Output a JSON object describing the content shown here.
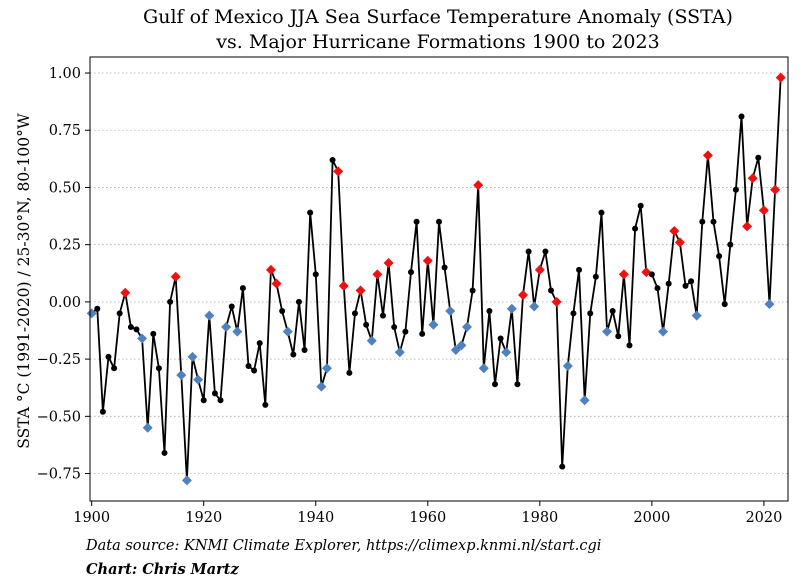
{
  "chart_data": {
    "type": "scatter",
    "title_line1": "Gulf of Mexico JJA Sea Surface Temperature Anomaly (SSTA)",
    "title_line2": "vs. Major Hurricane Formations 1900 to 2023",
    "ylabel": "SSTA °C (1991-2020) / 25-30°N, 80-100°W",
    "xlabel": "",
    "xlim": [
      1899.7,
      2024.3
    ],
    "ylim": [
      -0.87,
      1.07
    ],
    "x_ticks": [
      1900,
      1920,
      1940,
      1960,
      1980,
      2000,
      2020
    ],
    "y_ticks": [
      -0.75,
      -0.5,
      -0.25,
      0.0,
      0.25,
      0.5,
      0.75,
      1.0
    ],
    "y_tick_labels": [
      "−0.75",
      "−0.50",
      "−0.25",
      "0.00",
      "0.25",
      "0.50",
      "0.75",
      "1.00"
    ],
    "grid": "horizontal dotted",
    "colors": {
      "line": "#000000",
      "point_none": "#000000",
      "point_blue": "#4f81bd",
      "point_red": "#ee1111"
    },
    "series": [
      {
        "x": [
          1900,
          1901,
          1902,
          1903,
          1904,
          1905,
          1906,
          1907,
          1908,
          1909,
          1910,
          1911,
          1912,
          1913,
          1914,
          1915,
          1916,
          1917,
          1918,
          1919,
          1920,
          1921,
          1922,
          1923,
          1924,
          1925,
          1926,
          1927,
          1928,
          1929,
          1930,
          1931,
          1932,
          1933,
          1934,
          1935,
          1936,
          1937,
          1938,
          1939,
          1940,
          1941,
          1942,
          1943,
          1944,
          1945,
          1946,
          1947,
          1948,
          1949,
          1950,
          1951,
          1952,
          1953,
          1954,
          1955,
          1956,
          1957,
          1958,
          1959,
          1960,
          1961,
          1962,
          1963,
          1964,
          1965,
          1966,
          1967,
          1968,
          1969,
          1970,
          1971,
          1972,
          1973,
          1974,
          1975,
          1976,
          1977,
          1978,
          1979,
          1980,
          1981,
          1982,
          1983,
          1984,
          1985,
          1986,
          1987,
          1988,
          1989,
          1990,
          1991,
          1992,
          1993,
          1994,
          1995,
          1996,
          1997,
          1998,
          1999,
          2000,
          2001,
          2002,
          2003,
          2004,
          2005,
          2006,
          2007,
          2008,
          2009,
          2010,
          2011,
          2012,
          2013,
          2014,
          2015,
          2016,
          2017,
          2018,
          2019,
          2020,
          2021,
          2022,
          2023
        ],
        "y": [
          -0.05,
          -0.03,
          -0.48,
          -0.24,
          -0.29,
          -0.05,
          0.04,
          -0.11,
          -0.12,
          -0.16,
          -0.55,
          -0.14,
          -0.29,
          -0.66,
          0.0,
          0.11,
          -0.32,
          -0.78,
          -0.24,
          -0.34,
          -0.43,
          -0.06,
          -0.4,
          -0.43,
          -0.11,
          -0.02,
          -0.13,
          0.06,
          -0.28,
          -0.3,
          -0.18,
          -0.45,
          0.14,
          0.08,
          -0.04,
          -0.13,
          -0.23,
          0.0,
          -0.21,
          0.39,
          0.12,
          -0.37,
          -0.29,
          0.62,
          0.57,
          0.07,
          -0.31,
          -0.05,
          0.05,
          -0.1,
          -0.17,
          0.12,
          -0.06,
          0.17,
          -0.11,
          -0.22,
          -0.13,
          0.13,
          0.35,
          -0.14,
          0.18,
          -0.1,
          0.35,
          0.15,
          -0.04,
          -0.21,
          -0.19,
          -0.11,
          0.05,
          0.51,
          -0.29,
          -0.04,
          -0.36,
          -0.16,
          -0.22,
          -0.03,
          -0.36,
          0.03,
          0.22,
          -0.02,
          0.14,
          0.22,
          0.05,
          0.0,
          -0.72,
          -0.28,
          -0.05,
          0.14,
          -0.43,
          -0.05,
          0.11,
          0.39,
          -0.13,
          -0.04,
          -0.15,
          0.12,
          -0.19,
          0.32,
          0.42,
          0.13,
          0.12,
          0.06,
          -0.13,
          0.08,
          0.31,
          0.26,
          0.07,
          0.09,
          -0.06,
          0.35,
          0.64,
          0.35,
          0.2,
          -0.01,
          0.25,
          0.49,
          0.81,
          0.33,
          0.54,
          0.63,
          0.4,
          -0.01,
          0.49,
          0.98
        ],
        "marker": [
          "blue",
          "none",
          "none",
          "none",
          "none",
          "none",
          "red",
          "none",
          "none",
          "blue",
          "blue",
          "none",
          "none",
          "none",
          "none",
          "red",
          "blue",
          "blue",
          "blue",
          "blue",
          "none",
          "blue",
          "none",
          "none",
          "blue",
          "none",
          "blue",
          "none",
          "none",
          "none",
          "none",
          "none",
          "red",
          "red",
          "none",
          "blue",
          "none",
          "none",
          "none",
          "none",
          "none",
          "blue",
          "blue",
          "none",
          "red",
          "red",
          "none",
          "none",
          "red",
          "none",
          "blue",
          "red",
          "none",
          "red",
          "none",
          "blue",
          "none",
          "none",
          "none",
          "none",
          "red",
          "blue",
          "none",
          "none",
          "blue",
          "blue",
          "blue",
          "blue",
          "none",
          "red",
          "blue",
          "none",
          "none",
          "none",
          "blue",
          "blue",
          "none",
          "red",
          "none",
          "blue",
          "red",
          "none",
          "none",
          "red",
          "none",
          "blue",
          "none",
          "none",
          "blue",
          "none",
          "none",
          "none",
          "blue",
          "none",
          "none",
          "red",
          "none",
          "none",
          "none",
          "red",
          "none",
          "none",
          "blue",
          "none",
          "red",
          "red",
          "none",
          "none",
          "blue",
          "none",
          "red",
          "none",
          "none",
          "none",
          "none",
          "none",
          "none",
          "red",
          "red",
          "none",
          "red",
          "blue",
          "red",
          "red"
        ]
      }
    ],
    "footer": {
      "source": "Data source: KNMI Climate Explorer, https://climexp.knmi.nl/start.cgi",
      "credit": "Chart: Chris Martz"
    }
  }
}
